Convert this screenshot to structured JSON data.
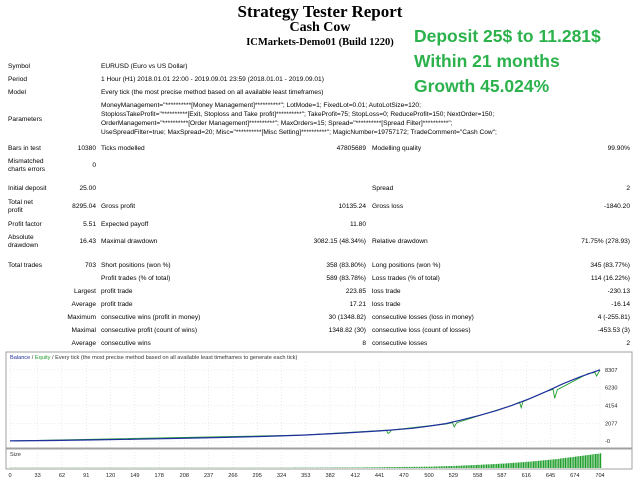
{
  "header": {
    "title": "Strategy Tester Report",
    "ea_name": "Cash Cow",
    "broker": "ICMarkets-Demo01 (Build 1220)"
  },
  "promo": {
    "line1": "Deposit 25$ to 11.281$",
    "line2": "Within 21 months",
    "line3": "Growth 45.024%",
    "color": "#2bb24c"
  },
  "info": {
    "symbol_label": "Symbol",
    "symbol_value": "EURUSD (Euro vs US Dollar)",
    "period_label": "Period",
    "period_value": "1 Hour (H1) 2018.01.01 22:00 - 2019.09.01 23:59 (2018.01.01 - 2019.09.01)",
    "model_label": "Model",
    "model_value": "Every tick (the most precise method based on all available least timeframes)",
    "parameters_label": "Parameters",
    "param_lines": [
      "MoneyManagement=\"**********[Money Management]**********\"; LotMode=1; FixedLot=0.01; AutoLotSize=120;",
      "StoplossTakeProfit=\"**********[Exit, Stoploss and Take profit]**********\"; TakeProfit=75; StopLoss=0; ReduceProfit=150; NextOrder=150;",
      "OrderManagement=\"**********[Order Management]**********\"; MaxOrders=15; Spread=\"**********[Spread Filter]**********\";",
      "UseSpreadFilter=true; MaxSpread=20; Misc=\"**********[Misc Setting]**********\"; MagicNumber=19757172; TradeComment=\"Cash Cow\";"
    ]
  },
  "stats": {
    "bars_in_test_label": "Bars in test",
    "bars_in_test": "10380",
    "ticks_modelled_label": "Ticks modelled",
    "ticks_modelled": "47805689",
    "modelling_quality_label": "Modelling quality",
    "modelling_quality": "99.90%",
    "mismatched_label_1": "Mismatched",
    "mismatched_label_2": "charts errors",
    "mismatched": "0",
    "initial_deposit_label": "Initial deposit",
    "initial_deposit": "25.00",
    "spread_label": "Spread",
    "spread": "2",
    "net_profit_label_1": "Total net",
    "net_profit_label_2": "profit",
    "net_profit": "8295.04",
    "gross_profit_label": "Gross profit",
    "gross_profit": "10135.24",
    "gross_loss_label": "Gross loss",
    "gross_loss": "-1840.20",
    "profit_factor_label": "Profit factor",
    "profit_factor": "5.51",
    "expected_payoff_label": "Expected payoff",
    "expected_payoff": "11.80",
    "abs_dd_label_1": "Absolute",
    "abs_dd_label_2": "drawdown",
    "abs_dd": "16.43",
    "max_dd_label": "Maximal drawdown",
    "max_dd": "3082.15 (48.34%)",
    "rel_dd_label": "Relative drawdown",
    "rel_dd": "71.75% (278.93)",
    "total_trades_label": "Total trades",
    "total_trades": "703",
    "short_label": "Short positions (won %)",
    "short": "358 (83.80%)",
    "long_label": "Long positions (won %)",
    "long": "345 (83.77%)",
    "profit_trades_label": "Profit trades (% of total)",
    "profit_trades": "589 (83.78%)",
    "loss_trades_label": "Loss trades (% of total)",
    "loss_trades": "114 (16.22%)",
    "largest_label": "Largest",
    "largest_profit_label": "profit trade",
    "largest_profit": "223.85",
    "largest_loss_label": "loss trade",
    "largest_loss": "-230.13",
    "average_label": "Average",
    "average_profit_label": "profit trade",
    "average_profit": "17.21",
    "average_loss_label": "loss trade",
    "average_loss": "-16.14",
    "maximum_label": "Maximum",
    "max_cons_wins_label": "consecutive wins (profit in money)",
    "max_cons_wins": "30 (1348.82)",
    "max_cons_losses_label": "consecutive losses (loss in money)",
    "max_cons_losses": "4 (-255.81)",
    "maximal_label": "Maximal",
    "maximal_cons_profit_label": "consecutive profit (count of wins)",
    "maximal_cons_profit": "1348.82 (30)",
    "maximal_cons_loss_label": "consecutive loss (count of losses)",
    "maximal_cons_loss": "-453.53 (3)",
    "avg_cons_label": "Average",
    "avg_cons_wins_label": "consecutive wins",
    "avg_cons_wins": "8",
    "avg_cons_losses_label": "consecutive losses",
    "avg_cons_losses": "2"
  },
  "chart_data": {
    "type": "line",
    "legend": [
      "Balance",
      "Equity"
    ],
    "legend_desc": "Every tick (the most precise method based on all available least timeframes to generate each tick)",
    "y_ticks": [
      0,
      2077,
      4154,
      6230,
      8307
    ],
    "y_tick_labels": [
      "-0",
      "2077",
      "4154",
      "6230",
      "8307"
    ],
    "ylim": [
      -100,
      9000
    ],
    "xlim": [
      0,
      704
    ],
    "x_ticks": [
      0,
      33,
      62,
      91,
      120,
      149,
      178,
      208,
      237,
      266,
      295,
      324,
      353,
      382,
      412,
      441,
      470,
      500,
      529,
      558,
      587,
      616,
      645,
      674,
      704
    ],
    "x_tick_labels": [
      "0",
      "33",
      "62",
      "91",
      "120",
      "149",
      "178",
      "208",
      "237",
      "266",
      "295",
      "324",
      "353",
      "382",
      "412",
      "441",
      "470",
      "500",
      "529",
      "558",
      "587",
      "616",
      "645",
      "674",
      "704"
    ],
    "series": [
      {
        "name": "Balance",
        "color": "#1f2f9e",
        "x": [
          0,
          50,
          100,
          150,
          200,
          250,
          300,
          350,
          400,
          450,
          480,
          500,
          520,
          540,
          560,
          580,
          600,
          620,
          640,
          660,
          680,
          704
        ],
        "values": [
          25,
          80,
          150,
          230,
          320,
          420,
          540,
          700,
          950,
          1250,
          1500,
          1750,
          2050,
          2500,
          3000,
          3550,
          4200,
          4950,
          5800,
          6700,
          7500,
          8320
        ]
      },
      {
        "name": "Equity",
        "color": "#1e9e2a",
        "x": [
          0,
          350,
          449,
          451,
          453,
          455,
          520,
          528,
          530,
          533,
          600,
          608,
          610,
          612,
          640,
          648,
          650,
          653,
          690,
          698,
          700,
          704
        ],
        "values": [
          25,
          700,
          1280,
          900,
          1000,
          1300,
          2000,
          2150,
          1650,
          2150,
          4200,
          4550,
          3900,
          4600,
          5800,
          6050,
          5000,
          6000,
          7900,
          8000,
          7600,
          8300
        ]
      }
    ],
    "size_label": "Size",
    "size_series": {
      "name": "Size",
      "color": "#1e9e2a",
      "x": [
        0,
        300,
        420,
        470,
        500,
        530,
        560,
        590,
        620,
        650,
        680,
        704
      ],
      "values": [
        1,
        1,
        2,
        4,
        5,
        8,
        12,
        17,
        24,
        33,
        45,
        55
      ],
      "max": 60
    }
  }
}
